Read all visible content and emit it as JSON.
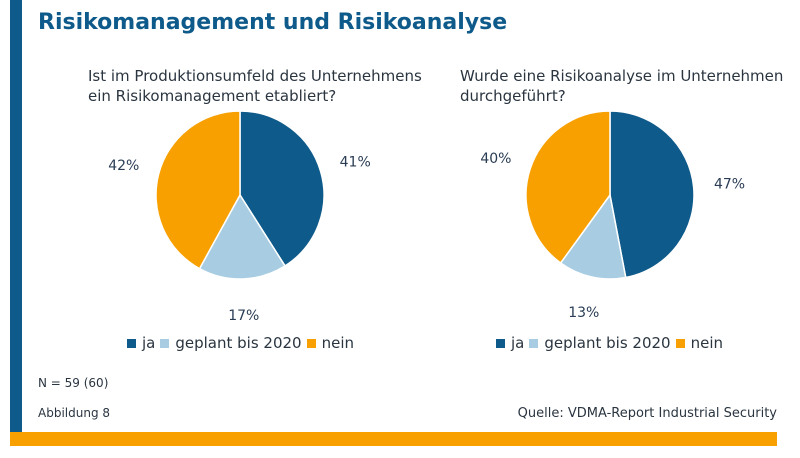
{
  "header": {
    "title": "Risikomanagement und Risikoanalyse"
  },
  "colors": {
    "ja": "#0e5a8a",
    "geplant": "#a8cde3",
    "nein": "#f7a000"
  },
  "chart_data": [
    {
      "type": "pie",
      "title": "Ist im Produktionsumfeld des Unternehmens ein Risikomanagement etabliert?",
      "categories": [
        "ja",
        "geplant bis 2020",
        "nein"
      ],
      "values": [
        41,
        17,
        42
      ],
      "labels": [
        "41%",
        "17%",
        "42%"
      ]
    },
    {
      "type": "pie",
      "title": "Wurde eine Risikoanalyse im Unternehmen durchgeführt?",
      "categories": [
        "ja",
        "geplant bis 2020",
        "nein"
      ],
      "values": [
        47,
        13,
        40
      ],
      "labels": [
        "47%",
        "13%",
        "40%"
      ]
    }
  ],
  "footer": {
    "sample": "N = 59 (60)",
    "figure": "Abbildung 8",
    "source": "Quelle: VDMA-Report Industrial Security"
  }
}
